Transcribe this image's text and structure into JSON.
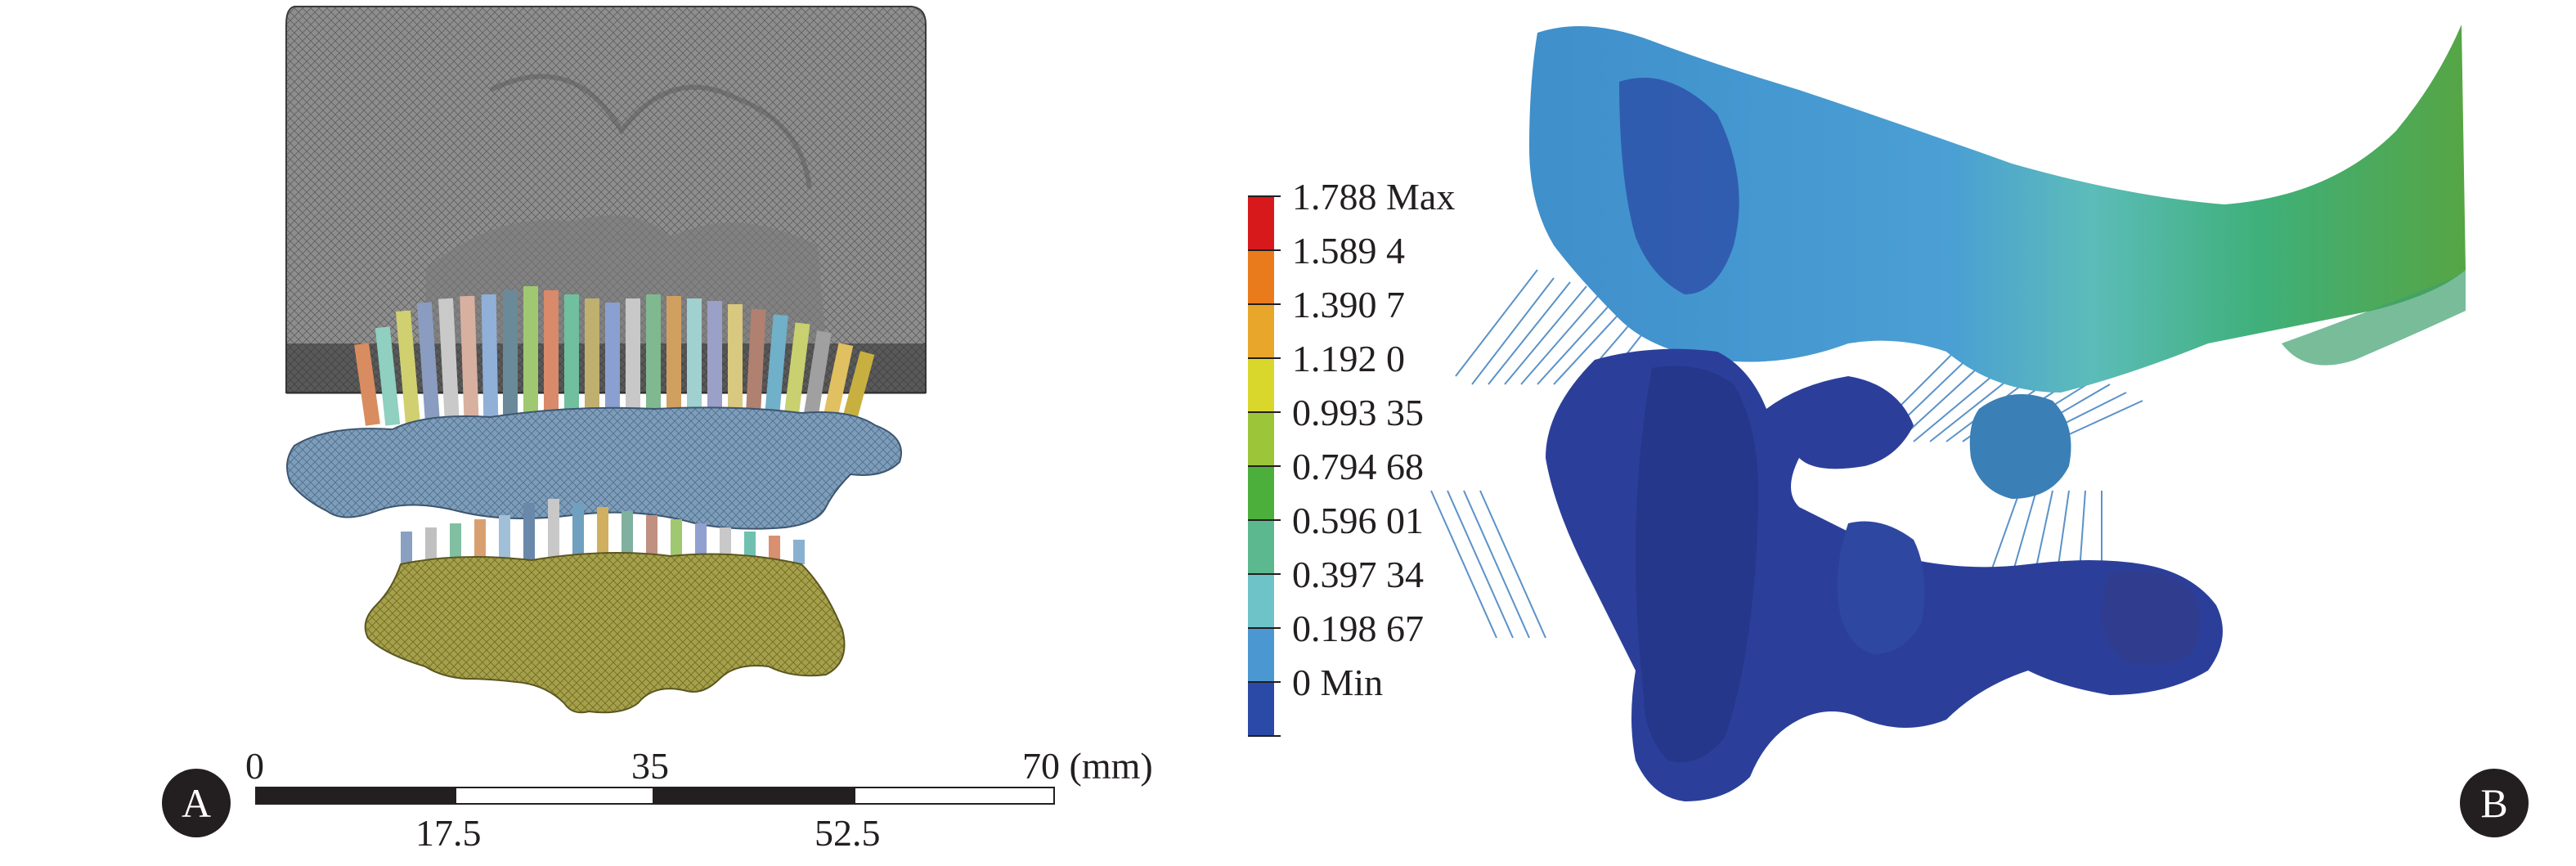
{
  "panel_a": {
    "label": "A",
    "scale_bar": {
      "top_labels": [
        "0",
        "35",
        "70 (mm)"
      ],
      "bottom_labels": [
        "17.5",
        "52.5"
      ]
    }
  },
  "panel_b": {
    "label": "B",
    "legend": {
      "entries": [
        {
          "label": "1.788 Max",
          "color": "#d7191c"
        },
        {
          "label": "1.589 4",
          "color": "#e97b1d"
        },
        {
          "label": "1.390 7",
          "color": "#e8a62a"
        },
        {
          "label": "1.192 0",
          "color": "#d9d72b"
        },
        {
          "label": "0.993 35",
          "color": "#9cc53a"
        },
        {
          "label": "0.794 68",
          "color": "#4caf3c"
        },
        {
          "label": "0.596 01",
          "color": "#5cb88e"
        },
        {
          "label": "0.397 34",
          "color": "#6ec3c9"
        },
        {
          "label": "0.198 67",
          "color": "#4a97d1"
        },
        {
          "label": "0 Min",
          "color": "#2b49a6"
        }
      ]
    }
  }
}
